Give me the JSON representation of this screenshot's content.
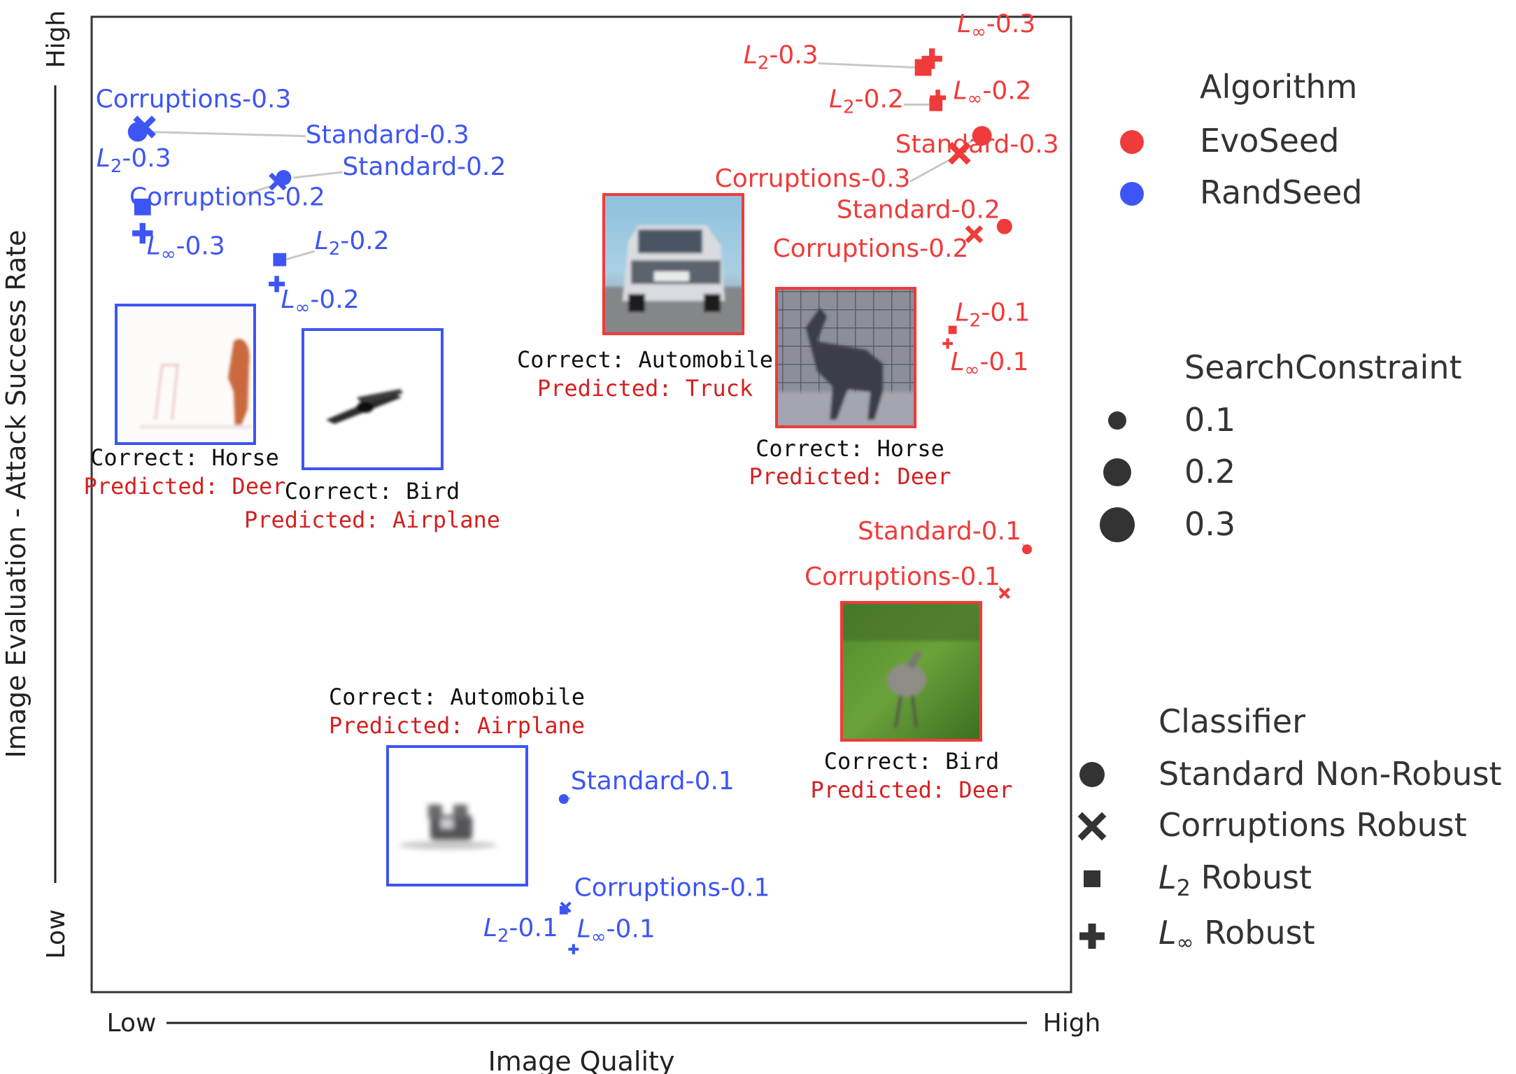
{
  "colors": {
    "evoseed": "#ef3b39",
    "randseed": "#3d55f5",
    "caption_pred": "#d42020",
    "leader": "#c8c8c8",
    "axis": "#222222"
  },
  "axes": {
    "x_title": "Image Quality",
    "x_low": "Low",
    "x_high": "High",
    "y_title": "Image Evaluation - Attack Success Rate",
    "y_low": "Low",
    "y_high": "High"
  },
  "legend": {
    "algorithm_title": "Algorithm",
    "algorithms": [
      {
        "label": "EvoSeed",
        "color": "#ef3b39"
      },
      {
        "label": "RandSeed",
        "color": "#3d55f5"
      }
    ],
    "constraint_title": "SearchConstraint",
    "constraints": [
      "0.1",
      "0.2",
      "0.3"
    ],
    "classifier_title": "Classifier",
    "classifiers": [
      {
        "label": "Standard Non-Robust",
        "marker": "circle"
      },
      {
        "label": "Corruptions Robust",
        "marker": "x"
      },
      {
        "label": "L2 Robust",
        "marker": "square"
      },
      {
        "label": "L∞ Robust",
        "marker": "plus"
      }
    ]
  },
  "chart_data": {
    "type": "scatter",
    "title": "",
    "xlabel": "Image Quality",
    "ylabel": "Image Evaluation - Attack Success Rate",
    "x_range": [
      "Low",
      "High"
    ],
    "y_range": [
      "Low",
      "High"
    ],
    "grid": false,
    "points": [
      {
        "algorithm": "EvoSeed",
        "classifier": "L∞",
        "constraint": 0.3,
        "label": "L∞-0.3",
        "x": 0.858,
        "y": 0.957
      },
      {
        "algorithm": "EvoSeed",
        "classifier": "L2",
        "constraint": 0.3,
        "label": "L2-0.3",
        "x": 0.849,
        "y": 0.948
      },
      {
        "algorithm": "EvoSeed",
        "classifier": "L∞",
        "constraint": 0.2,
        "label": "L∞-0.2",
        "x": 0.864,
        "y": 0.917
      },
      {
        "algorithm": "EvoSeed",
        "classifier": "L2",
        "constraint": 0.2,
        "label": "L2-0.2",
        "x": 0.862,
        "y": 0.91
      },
      {
        "algorithm": "EvoSeed",
        "classifier": "Standard",
        "constraint": 0.3,
        "label": "Standard-0.3",
        "x": 0.909,
        "y": 0.878
      },
      {
        "algorithm": "EvoSeed",
        "classifier": "Corruptions",
        "constraint": 0.3,
        "label": "Corruptions-0.3",
        "x": 0.886,
        "y": 0.86
      },
      {
        "algorithm": "EvoSeed",
        "classifier": "Standard",
        "constraint": 0.2,
        "label": "Standard-0.2",
        "x": 0.932,
        "y": 0.785
      },
      {
        "algorithm": "EvoSeed",
        "classifier": "Corruptions",
        "constraint": 0.2,
        "label": "Corruptions-0.2",
        "x": 0.901,
        "y": 0.777
      },
      {
        "algorithm": "EvoSeed",
        "classifier": "L2",
        "constraint": 0.1,
        "label": "L2-0.1",
        "x": 0.879,
        "y": 0.679
      },
      {
        "algorithm": "EvoSeed",
        "classifier": "L∞",
        "constraint": 0.1,
        "label": "L∞-0.1",
        "x": 0.874,
        "y": 0.665
      },
      {
        "algorithm": "EvoSeed",
        "classifier": "Standard",
        "constraint": 0.1,
        "label": "Standard-0.1",
        "x": 0.955,
        "y": 0.454
      },
      {
        "algorithm": "EvoSeed",
        "classifier": "Corruptions",
        "constraint": 0.1,
        "label": "Corruptions-0.1",
        "x": 0.932,
        "y": 0.409
      },
      {
        "algorithm": "RandSeed",
        "classifier": "Corruptions",
        "constraint": 0.3,
        "label": "Corruptions-0.3",
        "x": 0.054,
        "y": 0.887
      },
      {
        "algorithm": "RandSeed",
        "classifier": "Standard",
        "constraint": 0.3,
        "label": "Standard-0.3",
        "x": 0.047,
        "y": 0.882
      },
      {
        "algorithm": "RandSeed",
        "classifier": "Standard",
        "constraint": 0.2,
        "label": "Standard-0.2",
        "x": 0.196,
        "y": 0.835
      },
      {
        "algorithm": "RandSeed",
        "classifier": "Corruptions",
        "constraint": 0.2,
        "label": "Corruptions-0.2",
        "x": 0.19,
        "y": 0.831
      },
      {
        "algorithm": "RandSeed",
        "classifier": "L2",
        "constraint": 0.3,
        "label": "L2-0.3",
        "x": 0.052,
        "y": 0.805
      },
      {
        "algorithm": "RandSeed",
        "classifier": "L∞",
        "constraint": 0.3,
        "label": "L∞-0.3",
        "x": 0.052,
        "y": 0.778
      },
      {
        "algorithm": "RandSeed",
        "classifier": "L2",
        "constraint": 0.2,
        "label": "L2-0.2",
        "x": 0.192,
        "y": 0.751
      },
      {
        "algorithm": "RandSeed",
        "classifier": "L∞",
        "constraint": 0.2,
        "label": "L∞-0.2",
        "x": 0.189,
        "y": 0.726
      },
      {
        "algorithm": "RandSeed",
        "classifier": "Standard",
        "constraint": 0.1,
        "label": "Standard-0.1",
        "x": 0.482,
        "y": 0.198
      },
      {
        "algorithm": "RandSeed",
        "classifier": "Corruptions",
        "constraint": 0.1,
        "label": "Corruptions-0.1",
        "x": 0.484,
        "y": 0.087
      },
      {
        "algorithm": "RandSeed",
        "classifier": "L2",
        "constraint": 0.1,
        "label": "L2-0.1",
        "x": 0.482,
        "y": 0.084
      },
      {
        "algorithm": "RandSeed",
        "classifier": "L∞",
        "constraint": 0.1,
        "label": "L∞-0.1",
        "x": 0.492,
        "y": 0.044
      }
    ],
    "examples": [
      {
        "algorithm": "RandSeed",
        "correct": "Correct: Horse",
        "predicted": "Predicted: Deer"
      },
      {
        "algorithm": "RandSeed",
        "correct": "Correct: Bird",
        "predicted": "Predicted: Airplane"
      },
      {
        "algorithm": "EvoSeed",
        "correct": "Correct: Automobile",
        "predicted": "Predicted: Truck"
      },
      {
        "algorithm": "EvoSeed",
        "correct": "Correct: Horse",
        "predicted": "Predicted: Deer"
      },
      {
        "algorithm": "RandSeed",
        "correct": "Correct: Automobile",
        "predicted": "Predicted: Airplane"
      },
      {
        "algorithm": "EvoSeed",
        "correct": "Correct: Bird",
        "predicted": "Predicted: Deer"
      }
    ]
  }
}
